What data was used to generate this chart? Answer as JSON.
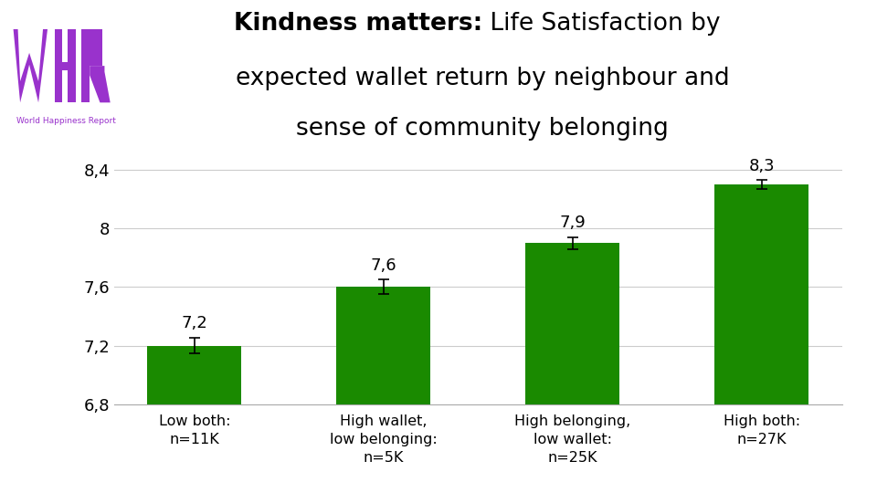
{
  "categories": [
    "Low both:\nn=11K",
    "High wallet,\nlow belonging:\nn=5K",
    "High belonging,\nlow wallet:\nn=25K",
    "High both:\nn=27K"
  ],
  "values": [
    7.2,
    7.6,
    7.9,
    8.3
  ],
  "errors": [
    0.055,
    0.05,
    0.04,
    0.03
  ],
  "bar_color": "#1a8a00",
  "bar_width": 0.5,
  "ylim": [
    6.8,
    8.55
  ],
  "yticks": [
    6.8,
    7.2,
    7.6,
    8.0,
    8.4
  ],
  "ytick_labels": [
    "6,8",
    "7,2",
    "7,6",
    "8",
    "8,4"
  ],
  "value_labels": [
    "7,2",
    "7,6",
    "7,9",
    "8,3"
  ],
  "title_bold": "Kindness matters:",
  "title_line1_normal": " Life Satisfaction by",
  "title_line2": "expected wallet return by neighbour and",
  "title_line3": "sense of community belonging",
  "background_color": "#ffffff",
  "grid_color": "#cccccc",
  "title_fontsize": 19,
  "label_fontsize": 11.5,
  "value_label_fontsize": 13,
  "ytick_fontsize": 13,
  "logo_color": "#9932cc",
  "logo_text": "World Happiness Report",
  "logo_text_fontsize": 6.5
}
